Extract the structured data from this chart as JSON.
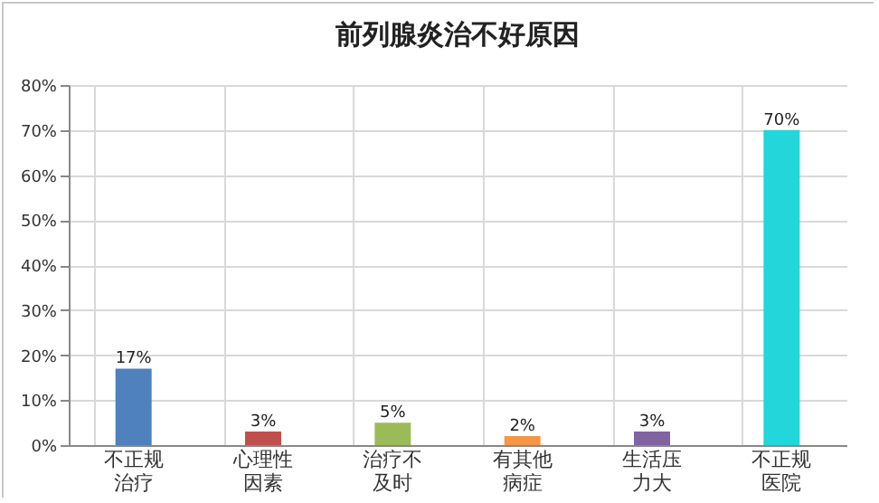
{
  "chart_data": {
    "type": "bar",
    "title": "前列腺炎治不好原因",
    "categories": [
      "不正规治疗",
      "心理性因素",
      "治疗不及时",
      "有其他病症",
      "生活压力大",
      "不正规医院"
    ],
    "values": [
      17,
      3,
      5,
      2,
      3,
      70
    ],
    "colors": [
      "#4f81bd",
      "#c0504d",
      "#9bbb59",
      "#f79646",
      "#8064a2",
      "#22d6da"
    ],
    "ylim": [
      0,
      80
    ],
    "yticks": [
      {
        "value": 0,
        "label": "0%"
      },
      {
        "value": 10,
        "label": "10%"
      },
      {
        "value": 20,
        "label": "20%"
      },
      {
        "value": 30,
        "label": "30%"
      },
      {
        "value": 40,
        "label": "40%"
      },
      {
        "value": 50,
        "label": "50%"
      },
      {
        "value": 60,
        "label": "60%"
      },
      {
        "value": 70,
        "label": "70%"
      },
      {
        "value": 80,
        "label": "80%"
      }
    ],
    "value_labels": [
      "17%",
      "3%",
      "5%",
      "2%",
      "3%",
      "70%"
    ],
    "grid": true
  }
}
